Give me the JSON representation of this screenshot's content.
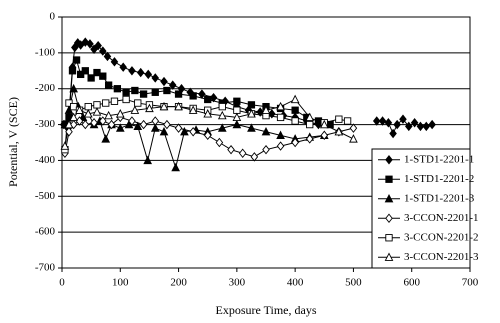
{
  "chart_data": {
    "type": "line",
    "x_label": "Exposure Time, days",
    "y_label": "Potential, V (SCE)",
    "xlim": [
      0,
      700
    ],
    "xticks": [
      0,
      100,
      200,
      300,
      400,
      500,
      600,
      700
    ],
    "ylim": [
      -700,
      0
    ],
    "yticks": [
      -700,
      -600,
      -500,
      -400,
      -300,
      -200,
      -100,
      0
    ],
    "grid": true,
    "legend": "lower right",
    "series": [
      {
        "name": "1-STD1-2201-1",
        "color": "#000000",
        "marker": "diamond",
        "filled": true,
        "x": [
          3,
          10,
          18,
          22,
          27,
          32,
          40,
          48,
          55,
          62,
          70,
          78,
          90,
          105,
          120,
          135,
          148,
          160,
          175,
          190,
          205,
          220,
          240,
          260,
          280,
          300,
          320,
          340,
          360,
          380,
          400,
          420,
          440,
          500,
          540,
          550,
          560,
          568,
          575,
          585,
          595,
          605,
          615,
          625,
          635
        ],
        "values": [
          -300,
          -310,
          -140,
          -85,
          -72,
          -78,
          -70,
          -75,
          -90,
          -80,
          -95,
          -110,
          -125,
          -140,
          -150,
          -155,
          -160,
          -170,
          -180,
          -190,
          -200,
          -210,
          -215,
          -225,
          -235,
          -250,
          -260,
          -265,
          -270,
          -275,
          -280,
          -290,
          -300,
          null,
          -290,
          -290,
          -295,
          -325,
          -300,
          -285,
          -305,
          -295,
          -305,
          -305,
          -300
        ]
      },
      {
        "name": "1-STD1-2201-2",
        "color": "#000000",
        "marker": "square",
        "filled": true,
        "x": [
          5,
          12,
          18,
          25,
          32,
          40,
          50,
          60,
          70,
          80,
          95,
          110,
          125,
          140,
          160,
          180,
          200,
          225,
          250,
          275,
          300,
          325,
          350,
          375,
          400,
          420,
          440,
          460
        ],
        "values": [
          -300,
          -280,
          -150,
          -120,
          -160,
          -150,
          -170,
          -155,
          -165,
          -190,
          -200,
          -210,
          -205,
          -215,
          -210,
          -205,
          -215,
          -220,
          -230,
          -240,
          -235,
          -245,
          -250,
          -255,
          -260,
          -280,
          -290,
          -300
        ]
      },
      {
        "name": "1-STD1-2201-3",
        "color": "#000000",
        "marker": "triangle",
        "filled": true,
        "x": [
          5,
          12,
          20,
          28,
          36,
          45,
          55,
          65,
          75,
          85,
          100,
          115,
          130,
          147,
          160,
          175,
          195,
          210,
          230,
          250,
          275,
          300,
          325,
          350,
          375,
          400,
          425,
          450
        ],
        "values": [
          -300,
          -260,
          -200,
          -250,
          -280,
          -270,
          -300,
          -290,
          -340,
          -300,
          -310,
          -300,
          -305,
          -400,
          -310,
          -320,
          -420,
          -320,
          -315,
          -320,
          -310,
          -300,
          -310,
          -320,
          -330,
          -340,
          -335,
          -330
        ]
      },
      {
        "name": "3-CCON-2201-1",
        "color": "#000000",
        "marker": "diamond",
        "filled": false,
        "x": [
          5,
          12,
          20,
          30,
          40,
          55,
          70,
          85,
          100,
          120,
          140,
          160,
          180,
          200,
          225,
          250,
          270,
          290,
          310,
          330,
          350,
          375,
          400,
          425,
          450,
          475,
          500
        ],
        "values": [
          -380,
          -320,
          -300,
          -290,
          -300,
          -295,
          -290,
          -300,
          -280,
          -290,
          -300,
          -290,
          -300,
          -310,
          -320,
          -330,
          -350,
          -370,
          -380,
          -390,
          -370,
          -360,
          -350,
          -340,
          -330,
          -320,
          -310
        ]
      },
      {
        "name": "3-CCON-2201-2",
        "color": "#000000",
        "marker": "square",
        "filled": false,
        "x": [
          5,
          12,
          20,
          30,
          45,
          60,
          75,
          90,
          110,
          130,
          150,
          175,
          200,
          225,
          250,
          275,
          300,
          325,
          350,
          375,
          400,
          425,
          450,
          475,
          490
        ],
        "values": [
          -370,
          -240,
          -250,
          -260,
          -250,
          -245,
          -240,
          -235,
          -230,
          -240,
          -245,
          -250,
          -250,
          -255,
          -260,
          -250,
          -260,
          -270,
          -275,
          -280,
          -290,
          -300,
          -295,
          -285,
          -290
        ]
      },
      {
        "name": "3-CCON-2201-3",
        "color": "#000000",
        "marker": "triangle",
        "filled": false,
        "x": [
          5,
          12,
          20,
          30,
          45,
          60,
          80,
          100,
          125,
          150,
          175,
          200,
          225,
          250,
          275,
          300,
          325,
          350,
          375,
          400,
          425,
          450,
          475,
          500
        ],
        "values": [
          -360,
          -300,
          -280,
          -260,
          -270,
          -265,
          -275,
          -270,
          -260,
          -255,
          -250,
          -250,
          -260,
          -270,
          -275,
          -280,
          -270,
          -260,
          -250,
          -230,
          -280,
          -300,
          -320,
          -340
        ]
      }
    ]
  }
}
